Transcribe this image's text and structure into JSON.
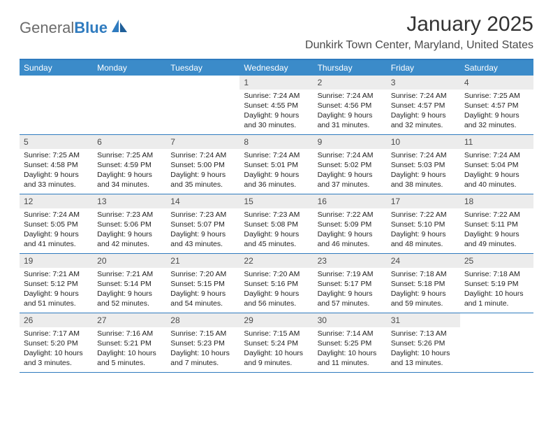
{
  "brand": {
    "part1": "General",
    "part2": "Blue"
  },
  "title": "January 2025",
  "location": "Dunkirk Town Center, Maryland, United States",
  "colors": {
    "header_bar": "#3b8bc9",
    "border": "#2f7bbf",
    "daynum_bg": "#ececec",
    "text": "#222222",
    "title_text": "#333333",
    "logo_gray": "#6b6b6b",
    "logo_blue": "#2f7bbf"
  },
  "typography": {
    "title_fontsize": 30,
    "location_fontsize": 16,
    "dayhead_fontsize": 12,
    "daynum_fontsize": 12,
    "info_fontsize": 10.5
  },
  "dayNames": [
    "Sunday",
    "Monday",
    "Tuesday",
    "Wednesday",
    "Thursday",
    "Friday",
    "Saturday"
  ],
  "weeks": [
    [
      {
        "empty": true
      },
      {
        "empty": true
      },
      {
        "empty": true
      },
      {
        "day": "1",
        "sunrise": "7:24 AM",
        "sunset": "4:55 PM",
        "daylight": "9 hours and 30 minutes."
      },
      {
        "day": "2",
        "sunrise": "7:24 AM",
        "sunset": "4:56 PM",
        "daylight": "9 hours and 31 minutes."
      },
      {
        "day": "3",
        "sunrise": "7:24 AM",
        "sunset": "4:57 PM",
        "daylight": "9 hours and 32 minutes."
      },
      {
        "day": "4",
        "sunrise": "7:25 AM",
        "sunset": "4:57 PM",
        "daylight": "9 hours and 32 minutes."
      }
    ],
    [
      {
        "day": "5",
        "sunrise": "7:25 AM",
        "sunset": "4:58 PM",
        "daylight": "9 hours and 33 minutes."
      },
      {
        "day": "6",
        "sunrise": "7:25 AM",
        "sunset": "4:59 PM",
        "daylight": "9 hours and 34 minutes."
      },
      {
        "day": "7",
        "sunrise": "7:24 AM",
        "sunset": "5:00 PM",
        "daylight": "9 hours and 35 minutes."
      },
      {
        "day": "8",
        "sunrise": "7:24 AM",
        "sunset": "5:01 PM",
        "daylight": "9 hours and 36 minutes."
      },
      {
        "day": "9",
        "sunrise": "7:24 AM",
        "sunset": "5:02 PM",
        "daylight": "9 hours and 37 minutes."
      },
      {
        "day": "10",
        "sunrise": "7:24 AM",
        "sunset": "5:03 PM",
        "daylight": "9 hours and 38 minutes."
      },
      {
        "day": "11",
        "sunrise": "7:24 AM",
        "sunset": "5:04 PM",
        "daylight": "9 hours and 40 minutes."
      }
    ],
    [
      {
        "day": "12",
        "sunrise": "7:24 AM",
        "sunset": "5:05 PM",
        "daylight": "9 hours and 41 minutes."
      },
      {
        "day": "13",
        "sunrise": "7:23 AM",
        "sunset": "5:06 PM",
        "daylight": "9 hours and 42 minutes."
      },
      {
        "day": "14",
        "sunrise": "7:23 AM",
        "sunset": "5:07 PM",
        "daylight": "9 hours and 43 minutes."
      },
      {
        "day": "15",
        "sunrise": "7:23 AM",
        "sunset": "5:08 PM",
        "daylight": "9 hours and 45 minutes."
      },
      {
        "day": "16",
        "sunrise": "7:22 AM",
        "sunset": "5:09 PM",
        "daylight": "9 hours and 46 minutes."
      },
      {
        "day": "17",
        "sunrise": "7:22 AM",
        "sunset": "5:10 PM",
        "daylight": "9 hours and 48 minutes."
      },
      {
        "day": "18",
        "sunrise": "7:22 AM",
        "sunset": "5:11 PM",
        "daylight": "9 hours and 49 minutes."
      }
    ],
    [
      {
        "day": "19",
        "sunrise": "7:21 AM",
        "sunset": "5:12 PM",
        "daylight": "9 hours and 51 minutes."
      },
      {
        "day": "20",
        "sunrise": "7:21 AM",
        "sunset": "5:14 PM",
        "daylight": "9 hours and 52 minutes."
      },
      {
        "day": "21",
        "sunrise": "7:20 AM",
        "sunset": "5:15 PM",
        "daylight": "9 hours and 54 minutes."
      },
      {
        "day": "22",
        "sunrise": "7:20 AM",
        "sunset": "5:16 PM",
        "daylight": "9 hours and 56 minutes."
      },
      {
        "day": "23",
        "sunrise": "7:19 AM",
        "sunset": "5:17 PM",
        "daylight": "9 hours and 57 minutes."
      },
      {
        "day": "24",
        "sunrise": "7:18 AM",
        "sunset": "5:18 PM",
        "daylight": "9 hours and 59 minutes."
      },
      {
        "day": "25",
        "sunrise": "7:18 AM",
        "sunset": "5:19 PM",
        "daylight": "10 hours and 1 minute."
      }
    ],
    [
      {
        "day": "26",
        "sunrise": "7:17 AM",
        "sunset": "5:20 PM",
        "daylight": "10 hours and 3 minutes."
      },
      {
        "day": "27",
        "sunrise": "7:16 AM",
        "sunset": "5:21 PM",
        "daylight": "10 hours and 5 minutes."
      },
      {
        "day": "28",
        "sunrise": "7:15 AM",
        "sunset": "5:23 PM",
        "daylight": "10 hours and 7 minutes."
      },
      {
        "day": "29",
        "sunrise": "7:15 AM",
        "sunset": "5:24 PM",
        "daylight": "10 hours and 9 minutes."
      },
      {
        "day": "30",
        "sunrise": "7:14 AM",
        "sunset": "5:25 PM",
        "daylight": "10 hours and 11 minutes."
      },
      {
        "day": "31",
        "sunrise": "7:13 AM",
        "sunset": "5:26 PM",
        "daylight": "10 hours and 13 minutes."
      },
      {
        "empty": true
      }
    ]
  ],
  "labels": {
    "sunrise": "Sunrise:",
    "sunset": "Sunset:",
    "daylight": "Daylight:"
  }
}
